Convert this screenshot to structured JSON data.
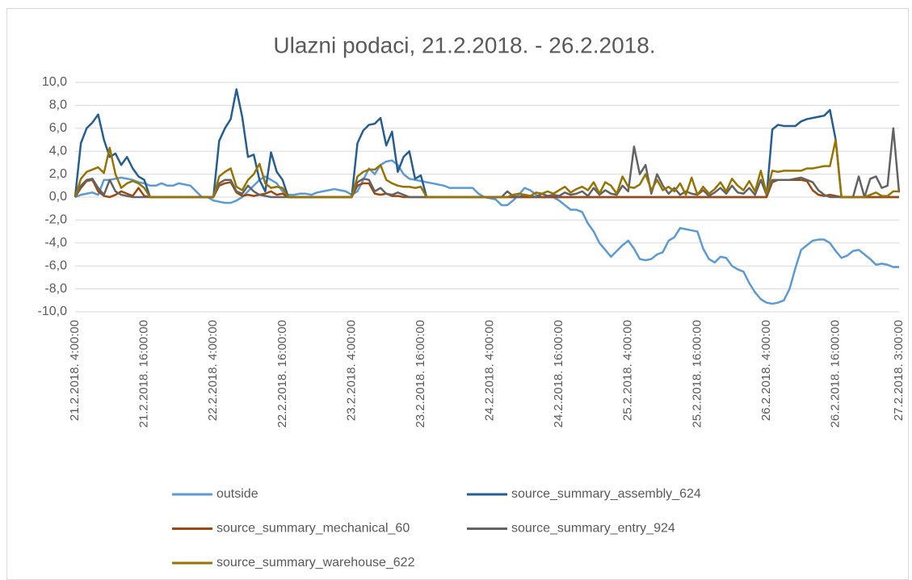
{
  "chart_data": {
    "type": "line",
    "title": "Ulazni podaci, 21.2.2018. - 26.2.2018.",
    "categories": [
      "21.2.2018. 4:00:00",
      null,
      null,
      null,
      null,
      null,
      null,
      null,
      null,
      null,
      null,
      null,
      "21.2.2018. 16:00:00",
      null,
      null,
      null,
      null,
      null,
      null,
      null,
      null,
      null,
      null,
      null,
      "22.2.2018. 4:00:00",
      null,
      null,
      null,
      null,
      null,
      null,
      null,
      null,
      null,
      null,
      null,
      "22.2.2018. 16:00:00",
      null,
      null,
      null,
      null,
      null,
      null,
      null,
      null,
      null,
      null,
      null,
      "23.2.2018. 4:00:00",
      null,
      null,
      null,
      null,
      null,
      null,
      null,
      null,
      null,
      null,
      null,
      "23.2.2018. 16:00:00",
      null,
      null,
      null,
      null,
      null,
      null,
      null,
      null,
      null,
      null,
      null,
      "24.2.2018. 4:00:00",
      null,
      null,
      null,
      null,
      null,
      null,
      null,
      null,
      null,
      null,
      null,
      "24.2.2018. 16:00:00",
      null,
      null,
      null,
      null,
      null,
      null,
      null,
      null,
      null,
      null,
      null,
      "25.2.2018. 4:00:00",
      null,
      null,
      null,
      null,
      null,
      null,
      null,
      null,
      null,
      null,
      null,
      "25.2.2018. 16:00:00",
      null,
      null,
      null,
      null,
      null,
      null,
      null,
      null,
      null,
      null,
      null,
      "26.2.2018. 4:00:00",
      null,
      null,
      null,
      null,
      null,
      null,
      null,
      null,
      null,
      null,
      null,
      "26.2.2018. 16:00:00",
      null,
      null,
      null,
      null,
      null,
      null,
      null,
      null,
      null,
      null,
      "27.2.2018. 3:00:00"
    ],
    "series": [
      {
        "name": "outside",
        "color": "#5b9bd5",
        "values": [
          0,
          0.2,
          0.3,
          0.4,
          0.2,
          1.5,
          1.5,
          1.6,
          1.7,
          1.6,
          1.5,
          1.3,
          1.2,
          1.0,
          1.0,
          1.2,
          1.0,
          1.0,
          1.2,
          1.1,
          1.0,
          0.5,
          0,
          0,
          -0.3,
          -0.4,
          -0.5,
          -0.5,
          -0.3,
          0,
          0.5,
          1.0,
          1.5,
          1.8,
          1.5,
          1.2,
          0.5,
          0.2,
          0.2,
          0.3,
          0.3,
          0.2,
          0.4,
          0.5,
          0.6,
          0.7,
          0.6,
          0.5,
          0.2,
          0.5,
          1.5,
          2.5,
          2.0,
          2.8,
          3.1,
          3.2,
          2.8,
          2.0,
          1.6,
          1.5,
          1.4,
          1.3,
          1.2,
          1.1,
          1.0,
          0.8,
          0.8,
          0.8,
          0.8,
          0.8,
          0.3,
          0,
          -0.1,
          -0.2,
          -0.7,
          -0.7,
          -0.3,
          0.2,
          0.8,
          0.6,
          0.2,
          0,
          0,
          0,
          -0.3,
          -0.7,
          -1.1,
          -1.1,
          -1.3,
          -2.3,
          -3.0,
          -4.0,
          -4.6,
          -5.2,
          -4.7,
          -4.2,
          -3.8,
          -4.5,
          -5.4,
          -5.5,
          -5.4,
          -5.0,
          -4.8,
          -3.8,
          -3.5,
          -2.7,
          -2.8,
          -2.9,
          -3.0,
          -4.5,
          -5.4,
          -5.7,
          -5.2,
          -5.3,
          -6.0,
          -6.3,
          -6.5,
          -7.5,
          -8.3,
          -8.9,
          -9.2,
          -9.3,
          -9.2,
          -9.0,
          -8.0,
          -6.2,
          -4.6,
          -4.2,
          -3.8,
          -3.7,
          -3.7,
          -4.0,
          -4.7,
          -5.3,
          -5.1,
          -4.7,
          -4.6,
          -5.0,
          -5.4,
          -5.9,
          -5.8,
          -5.9,
          -6.1,
          -6.1
        ]
      },
      {
        "name": "source_summary_assembly_624",
        "color": "#255e91",
        "values": [
          0,
          4.7,
          6.0,
          6.5,
          7.2,
          5.0,
          3.5,
          3.8,
          2.8,
          3.5,
          2.5,
          1.8,
          1.5,
          0,
          0,
          0,
          0,
          0,
          0,
          0,
          0,
          0,
          0,
          0,
          0,
          4.9,
          6.0,
          6.8,
          9.4,
          7.0,
          3.5,
          3.7,
          1.5,
          0.5,
          3.9,
          2.2,
          1.5,
          0,
          0,
          0,
          0,
          0,
          0,
          0,
          0,
          0,
          0,
          0,
          0,
          4.7,
          5.8,
          6.3,
          6.4,
          6.9,
          4.5,
          5.7,
          2.2,
          3.5,
          4.0,
          1.6,
          1.9,
          0,
          0,
          0,
          0,
          0,
          0,
          0,
          0,
          0,
          0,
          0,
          0,
          0,
          0,
          0,
          0,
          0,
          0,
          0,
          0,
          0,
          0,
          0,
          0,
          0,
          0,
          0,
          0,
          0,
          0,
          0,
          0,
          0,
          0,
          0,
          0,
          0,
          0,
          0,
          0,
          0,
          0,
          0,
          0,
          0,
          0,
          0,
          0,
          0,
          0,
          0,
          0,
          0,
          0,
          0,
          0,
          0,
          0,
          0,
          0,
          5.9,
          6.3,
          6.2,
          6.2,
          6.2,
          6.6,
          6.8,
          6.9,
          7.0,
          7.1,
          7.6,
          5.0,
          0,
          0,
          0,
          0,
          0,
          0,
          0,
          0,
          0,
          0,
          0
        ]
      },
      {
        "name": "source_summary_mechanical_60",
        "color": "#9e480e",
        "values": [
          0,
          0.8,
          1.4,
          1.5,
          0.5,
          0.1,
          0,
          0.2,
          0.5,
          0.3,
          0.1,
          0.8,
          0.1,
          0,
          0,
          0,
          0,
          0,
          0,
          0,
          0,
          0,
          0,
          0,
          0,
          1.0,
          1.2,
          1.3,
          0.4,
          0.1,
          0.2,
          0.1,
          0.2,
          0.3,
          0.5,
          0.2,
          0.3,
          0,
          0,
          0,
          0,
          0,
          0,
          0,
          0,
          0,
          0,
          0,
          0,
          1.0,
          1.2,
          1.2,
          0.3,
          0.2,
          0.3,
          0.1,
          0.1,
          0,
          0,
          0,
          0,
          0,
          0,
          0,
          0,
          0,
          0,
          0,
          0,
          0,
          0,
          0,
          0,
          0,
          0,
          0,
          0,
          0,
          0,
          0,
          0,
          0,
          0,
          0,
          0,
          0,
          0,
          0,
          0,
          0,
          0,
          0,
          0,
          0,
          0,
          0,
          0,
          0,
          0,
          0,
          0,
          0,
          0,
          0,
          0,
          0,
          0,
          0,
          0,
          0,
          0,
          0,
          0,
          0,
          0,
          0,
          0,
          0,
          0,
          0,
          0,
          1.3,
          1.5,
          1.5,
          1.5,
          1.5,
          1.5,
          1.4,
          0.6,
          0.2,
          0.1,
          0.2,
          0.1,
          0,
          0,
          0,
          0,
          0,
          0,
          0,
          0,
          0,
          0,
          0
        ]
      },
      {
        "name": "source_summary_entry_924",
        "color": "#636363",
        "values": [
          0,
          1.0,
          1.5,
          1.6,
          0.8,
          0.2,
          1.5,
          0.5,
          0.2,
          0.1,
          0,
          0,
          0,
          0,
          0,
          0,
          0,
          0,
          0,
          0,
          0,
          0,
          0,
          0,
          0,
          1.2,
          1.5,
          1.5,
          0.5,
          0.3,
          1.0,
          0.5,
          0.2,
          0.1,
          0,
          0,
          0,
          0,
          0,
          0,
          0,
          0,
          0,
          0,
          0,
          0,
          0,
          0,
          0,
          1.3,
          1.6,
          1.5,
          0.5,
          0.8,
          0.3,
          0.2,
          0.4,
          0.2,
          0,
          0,
          0,
          0,
          0,
          0,
          0,
          0,
          0,
          0,
          0,
          0,
          0,
          0,
          0,
          0,
          0,
          0.5,
          0.1,
          0,
          0.2,
          0.1,
          0,
          0.3,
          0.1,
          0.2,
          0.1,
          0.4,
          0.2,
          0.3,
          0.5,
          0.1,
          0.8,
          0.2,
          0.6,
          0.3,
          0.2,
          1.0,
          0.5,
          4.4,
          2.0,
          2.8,
          0.3,
          2.0,
          1.0,
          0.3,
          0.8,
          0.2,
          0.5,
          0.3,
          0.2,
          0.6,
          0.1,
          0.4,
          0.8,
          0.3,
          1.0,
          0.4,
          0.3,
          0.8,
          0.2,
          1.5,
          0.2,
          1.5,
          1.5,
          1.5,
          1.5,
          1.6,
          1.7,
          1.5,
          1.3,
          0.6,
          0.2,
          0,
          0,
          0,
          0,
          0,
          1.8,
          0,
          1.6,
          1.8,
          0.8,
          1.0,
          6.0,
          0.4
        ]
      },
      {
        "name": "source_summary_warehouse_622",
        "color": "#997300",
        "values": [
          0,
          1.6,
          2.2,
          2.4,
          2.6,
          2.1,
          4.3,
          2.0,
          0.8,
          1.2,
          1.4,
          1.2,
          0.8,
          0,
          0,
          0,
          0,
          0,
          0,
          0,
          0,
          0,
          0,
          0,
          0,
          1.8,
          2.2,
          2.5,
          0.9,
          0.6,
          1.5,
          2.0,
          2.9,
          1.2,
          0.8,
          0.9,
          0.8,
          0,
          0,
          0,
          0,
          0,
          0,
          0,
          0,
          0,
          0,
          0,
          0,
          1.8,
          2.2,
          2.4,
          2.4,
          2.8,
          1.5,
          1.2,
          1.0,
          0.9,
          0.9,
          0.8,
          0.9,
          0,
          0,
          0,
          0,
          0,
          0,
          0,
          0,
          0,
          0,
          0,
          0,
          0,
          0,
          0,
          0.2,
          0.3,
          0.2,
          0.1,
          0.4,
          0.3,
          0.5,
          0.3,
          0.6,
          0.9,
          0.4,
          0.7,
          0.9,
          0.6,
          1.3,
          0.3,
          1.3,
          1.0,
          0.3,
          1.8,
          0.9,
          0.8,
          1.1,
          2.0,
          0.6,
          1.5,
          0.6,
          0.9,
          0.5,
          1.2,
          0.2,
          1.7,
          0.2,
          0.9,
          0.3,
          0.7,
          1.3,
          0.5,
          1.6,
          1.0,
          0.6,
          1.4,
          0.5,
          2.3,
          0.3,
          2.3,
          2.2,
          2.3,
          2.3,
          2.3,
          2.3,
          2.5,
          2.5,
          2.6,
          2.7,
          2.7,
          5.0,
          0,
          0,
          0,
          0,
          0,
          0.2,
          0.4,
          0.1,
          0.1,
          0.5,
          0.5
        ]
      }
    ],
    "ylim": [
      -10,
      10
    ],
    "yticks": [
      {
        "value": -10,
        "label": "-10,0"
      },
      {
        "value": -8,
        "label": "-8,0"
      },
      {
        "value": -6,
        "label": "-6,0"
      },
      {
        "value": -4,
        "label": "-4,0"
      },
      {
        "value": -2,
        "label": "-2,0"
      },
      {
        "value": 0,
        "label": "0,0"
      },
      {
        "value": 2,
        "label": "2,0"
      },
      {
        "value": 4,
        "label": "4,0"
      },
      {
        "value": 6,
        "label": "6,0"
      },
      {
        "value": 8,
        "label": "8,0"
      },
      {
        "value": 10,
        "label": "10,0"
      }
    ],
    "grid": true,
    "legend": "bottom"
  }
}
